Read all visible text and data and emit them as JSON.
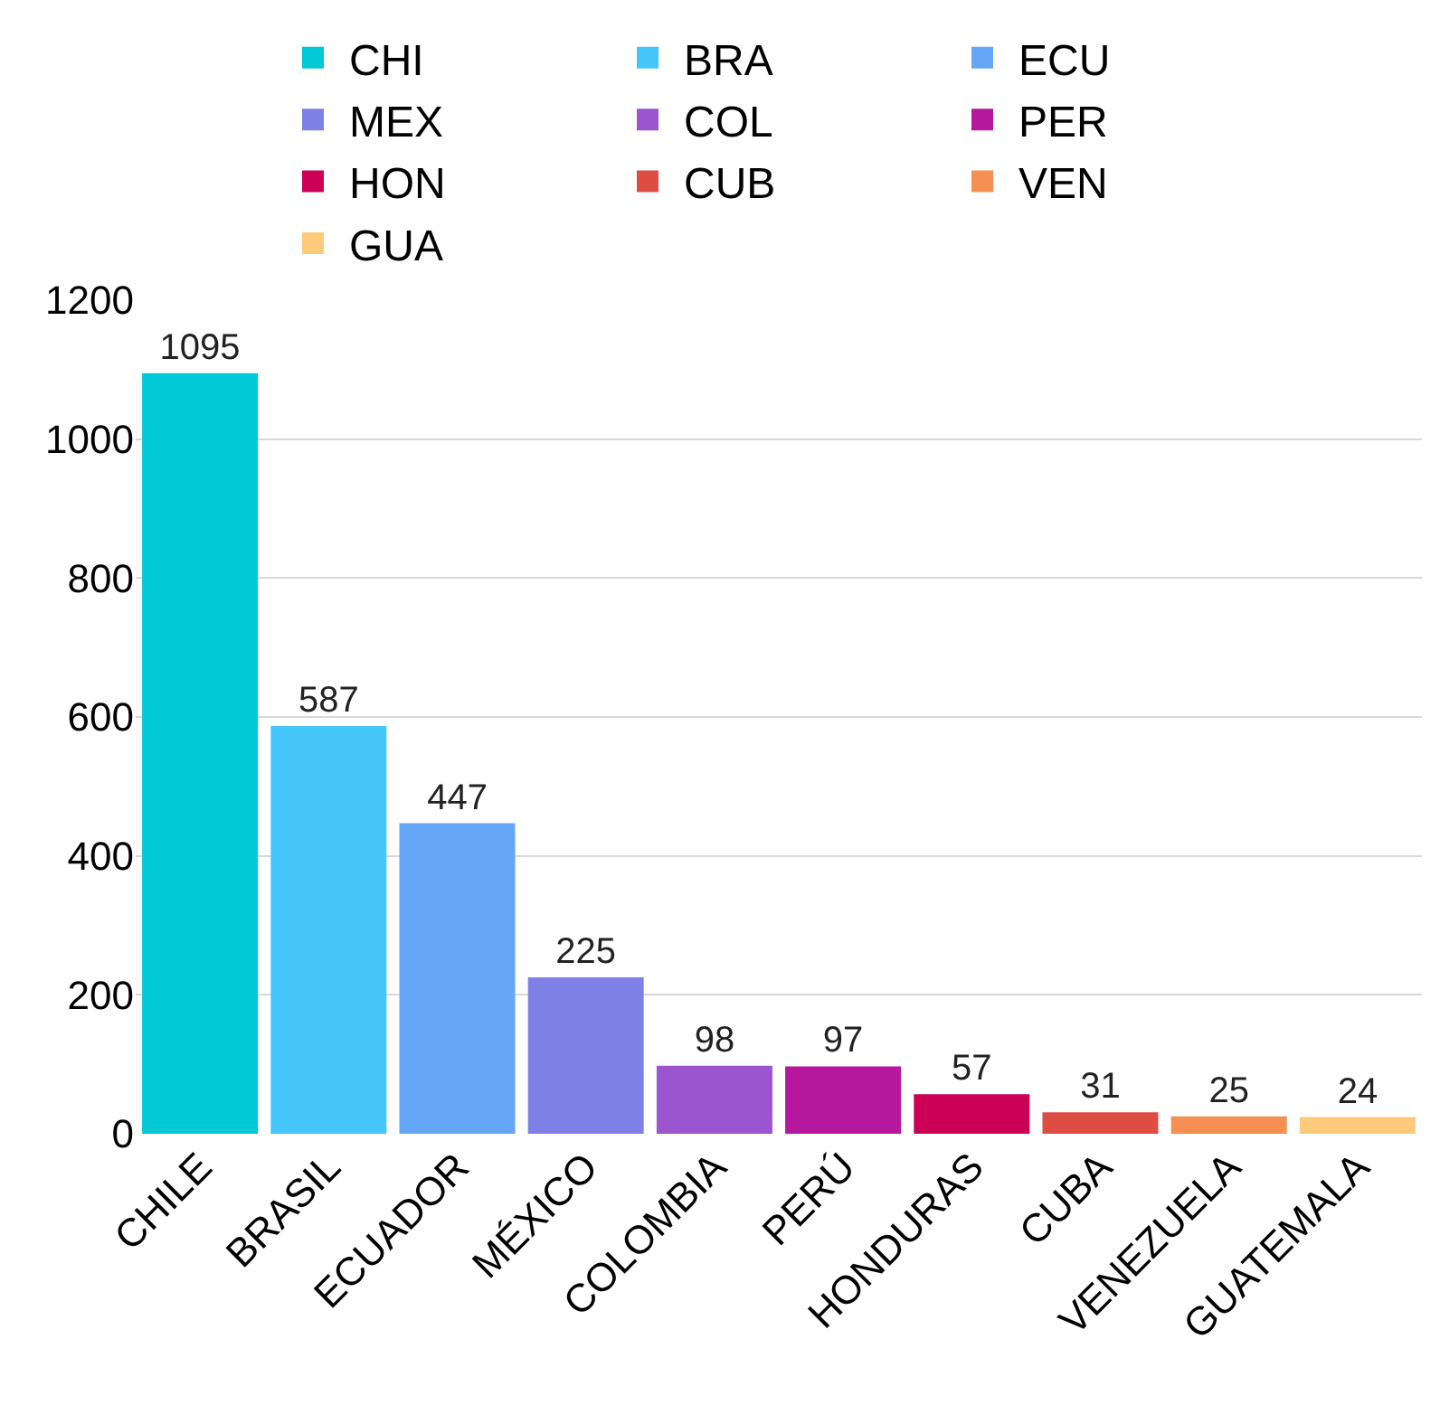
{
  "chart_data": {
    "type": "bar",
    "categories": [
      "CHILE",
      "BRASIL",
      "ECUADOR",
      "MÉXICO",
      "COLOMBIA",
      "PERÚ",
      "HONDURAS",
      "CUBA",
      "VENEZUELA",
      "GUATEMALA"
    ],
    "series": [
      {
        "name": "CHI",
        "color": "#00c8d7",
        "values": [
          1095,
          null,
          null,
          null,
          null,
          null,
          null,
          null,
          null,
          null
        ]
      },
      {
        "name": "BRA",
        "color": "#47c6fb",
        "values": [
          null,
          587,
          null,
          null,
          null,
          null,
          null,
          null,
          null,
          null
        ]
      },
      {
        "name": "ECU",
        "color": "#66a6f7",
        "values": [
          null,
          null,
          447,
          null,
          null,
          null,
          null,
          null,
          null,
          null
        ]
      },
      {
        "name": "MEX",
        "color": "#7f80e6",
        "values": [
          null,
          null,
          null,
          225,
          null,
          null,
          null,
          null,
          null,
          null
        ]
      },
      {
        "name": "COL",
        "color": "#9b55cf",
        "values": [
          null,
          null,
          null,
          null,
          98,
          null,
          null,
          null,
          null,
          null
        ]
      },
      {
        "name": "PER",
        "color": "#b7179f",
        "values": [
          null,
          null,
          null,
          null,
          null,
          97,
          null,
          null,
          null,
          null
        ]
      },
      {
        "name": "HON",
        "color": "#cc0055",
        "values": [
          null,
          null,
          null,
          null,
          null,
          null,
          57,
          null,
          null,
          null
        ]
      },
      {
        "name": "CUB",
        "color": "#de4d44",
        "values": [
          null,
          null,
          null,
          null,
          null,
          null,
          null,
          31,
          null,
          null
        ]
      },
      {
        "name": "VEN",
        "color": "#f58f52",
        "values": [
          null,
          null,
          null,
          null,
          null,
          null,
          null,
          null,
          25,
          null
        ]
      },
      {
        "name": "GUA",
        "color": "#fdc97a",
        "values": [
          null,
          null,
          null,
          null,
          null,
          null,
          null,
          null,
          null,
          24
        ]
      }
    ],
    "ylim": [
      0,
      1200
    ],
    "yticks": [
      0,
      200,
      400,
      600,
      800,
      1000,
      1200
    ],
    "grid": "y",
    "legend": "top",
    "data_labels": true
  }
}
